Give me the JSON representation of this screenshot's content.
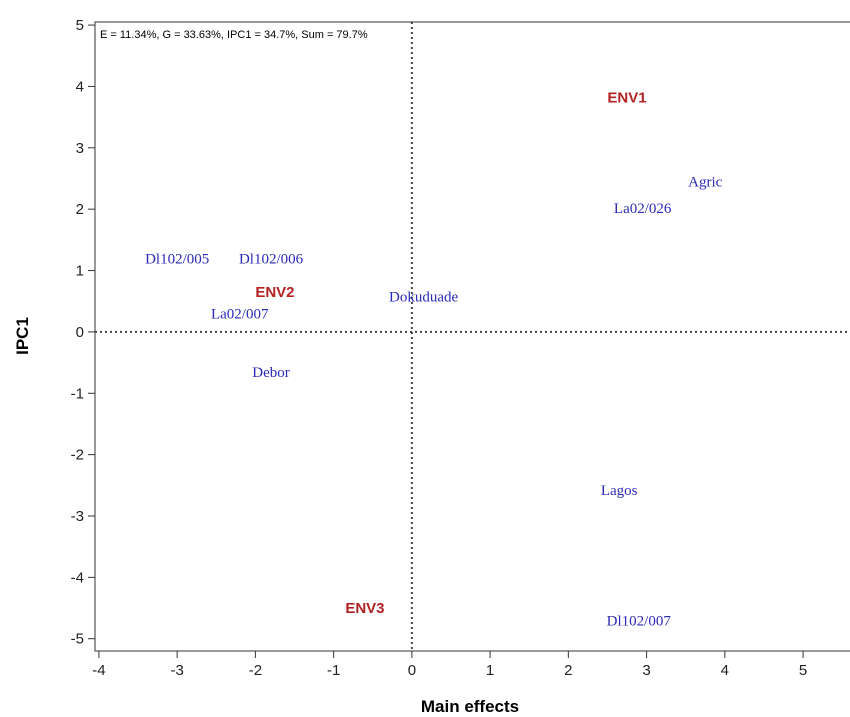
{
  "chart_data": {
    "type": "scatter",
    "title": "",
    "annotation": "E = 11.34%, G = 33.63%, IPC1 = 34.7%, Sum = 79.7%",
    "xlabel": "Main effects",
    "ylabel": "IPC1",
    "xlim": [
      -4.05,
      5.6
    ],
    "ylim": [
      -5.2,
      5.05
    ],
    "xticks": [
      "-4",
      "-3",
      "-2",
      "-1",
      "0",
      "1",
      "2",
      "3",
      "4",
      "5"
    ],
    "yticks": [
      "5",
      "4",
      "3",
      "2",
      "1",
      "0",
      "-1",
      "-2",
      "-3",
      "-4",
      "-5"
    ],
    "reference_lines": {
      "x": 0,
      "y": 0,
      "style": "dotted"
    },
    "grid": false,
    "genotype_color": "#2a2ab8",
    "environment_color": "#b32222",
    "genotypes": [
      {
        "label": "Agric",
        "x": 3.75,
        "y": 2.45
      },
      {
        "label": "La02/026",
        "x": 2.95,
        "y": 2.02
      },
      {
        "label": "Dl102/005",
        "x": -3.0,
        "y": 1.2
      },
      {
        "label": "Dl102/006",
        "x": -1.8,
        "y": 1.2
      },
      {
        "label": "Dokuduade",
        "x": 0.15,
        "y": 0.58
      },
      {
        "label": "La02/007",
        "x": -2.2,
        "y": 0.3
      },
      {
        "label": "Debor",
        "x": -1.8,
        "y": -0.65
      },
      {
        "label": "Lagos",
        "x": 2.65,
        "y": -2.58
      },
      {
        "label": "Dl102/007",
        "x": 2.9,
        "y": -4.7
      }
    ],
    "environments": [
      {
        "label": "ENV1",
        "x": 2.75,
        "y": 3.82
      },
      {
        "label": "ENV2",
        "x": -1.75,
        "y": 0.65
      },
      {
        "label": "ENV3",
        "x": -0.6,
        "y": -4.5
      }
    ]
  }
}
